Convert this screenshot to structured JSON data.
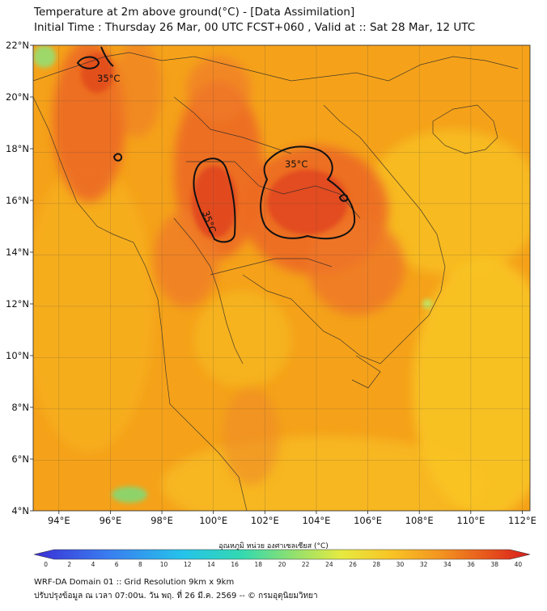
{
  "title": {
    "line1": "Temperature at 2m above ground(°C) - [Data Assimilation]",
    "line2": "Initial Time : Thursday 26 Mar, 00 UTC FCST+060 , Valid at :: Sat 28 Mar, 12 UTC"
  },
  "map": {
    "lat_ticks": [
      "22°N",
      "20°N",
      "18°N",
      "16°N",
      "14°N",
      "12°N",
      "10°N",
      "8°N",
      "6°N",
      "4°N"
    ],
    "lon_ticks": [
      "94°E",
      "96°E",
      "98°E",
      "100°E",
      "102°E",
      "104°E",
      "106°E",
      "108°E",
      "110°E",
      "112°E"
    ],
    "lat_range": [
      4,
      22
    ],
    "lon_range": [
      93,
      112.3
    ],
    "contour_label_value": "35°C",
    "contour_labels": [
      "35°C",
      "35°C",
      "35°C"
    ],
    "colors": {
      "hot": "#e8541e",
      "warm": "#f5a21a",
      "mild": "#f8c425",
      "cool": "#9fd86a"
    }
  },
  "colorbar": {
    "label": "อุณหภูมิ หน่วย องศาเซลเซียส (°C)",
    "ticks": [
      "0",
      "2",
      "4",
      "6",
      "8",
      "10",
      "12",
      "14",
      "16",
      "18",
      "20",
      "22",
      "24",
      "26",
      "28",
      "30",
      "32",
      "34",
      "36",
      "38",
      "40"
    ],
    "range": [
      -1,
      41
    ]
  },
  "footer": {
    "line1": "WRF-DA Domain 01 :: Grid Resolution 9km x 9km",
    "line2": "ปรับปรุงข้อมูล ณ เวลา 07:00น. วัน พฤ. ที่ 26 มี.ค. 2569 -- © กรมอุตุนิยมวิทยา"
  }
}
